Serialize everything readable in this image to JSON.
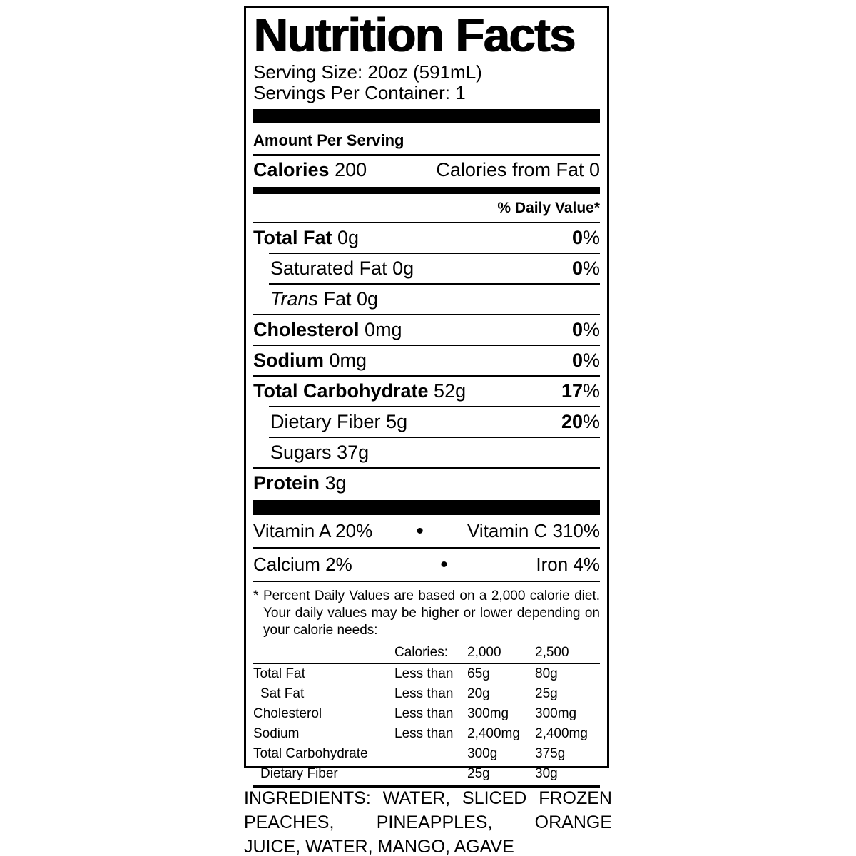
{
  "colors": {
    "ink": "#000000",
    "background": "#ffffff"
  },
  "symbols": {
    "percent": "%",
    "bullet": "•"
  },
  "label": {
    "title": "Nutrition Facts",
    "serving_size": "Serving Size: 20oz (591mL)",
    "servings_per_container": "Servings Per Container: 1",
    "amount_per_serving": "Amount Per Serving",
    "calories": {
      "label": "Calories",
      "value": "200",
      "from_fat": "Calories from Fat 0"
    },
    "daily_value_header": "% Daily Value*",
    "nutrients": [
      {
        "name": "Total Fat",
        "amount": "0g",
        "dv": "0"
      },
      {
        "name": "Saturated Fat",
        "amount": "0g",
        "dv": "0"
      },
      {
        "name": "Trans",
        "amount": "Fat 0g",
        "dv": ""
      },
      {
        "name": "Cholesterol",
        "amount": "0mg",
        "dv": "0"
      },
      {
        "name": "Sodium",
        "amount": "0mg",
        "dv": "0"
      },
      {
        "name": "Total Carbohydrate",
        "amount": "52g",
        "dv": "17"
      },
      {
        "name": "Dietary Fiber",
        "amount": "5g",
        "dv": "20"
      },
      {
        "name": "Sugars",
        "amount": "37g",
        "dv": ""
      },
      {
        "name": "Protein",
        "amount": "3g",
        "dv": ""
      }
    ],
    "vitamins": [
      {
        "left": "Vitamin A 20%",
        "right": "Vitamin C 310%"
      },
      {
        "left": "Calcium 2%",
        "right": "Iron 4%"
      }
    ],
    "footnote": {
      "marker": "*",
      "lines": [
        "Percent Daily Values are based on a 2,000 calorie diet.",
        "Your daily values may be higher or lower depending on",
        "your calorie needs:"
      ]
    },
    "dv_table": {
      "header": {
        "calories_label": "Calories:",
        "col_2000": "2,000",
        "col_2500": "2,500"
      },
      "rows": [
        {
          "label": "Total Fat",
          "qualifier": "Less than",
          "v2000": "65g",
          "v2500": "80g"
        },
        {
          "label": "Sat Fat",
          "qualifier": "Less than",
          "v2000": "20g",
          "v2500": "25g"
        },
        {
          "label": "Cholesterol",
          "qualifier": "Less than",
          "v2000": "300mg",
          "v2500": "300mg"
        },
        {
          "label": "Sodium",
          "qualifier": "Less than",
          "v2000": "2,400mg",
          "v2500": "2,400mg"
        },
        {
          "label": "Total Carbohydrate",
          "qualifier": "",
          "v2000": "300g",
          "v2500": "375g"
        },
        {
          "label": "Dietary Fiber",
          "qualifier": "",
          "v2000": "25g",
          "v2500": "30g"
        }
      ]
    }
  },
  "ingredients": {
    "lines": [
      "INGREDIENTS: WATER, SLICED FROZEN",
      "PEACHES, PINEAPPLES, ORANGE",
      "JUICE, WATER, MANGO, AGAVE"
    ]
  }
}
